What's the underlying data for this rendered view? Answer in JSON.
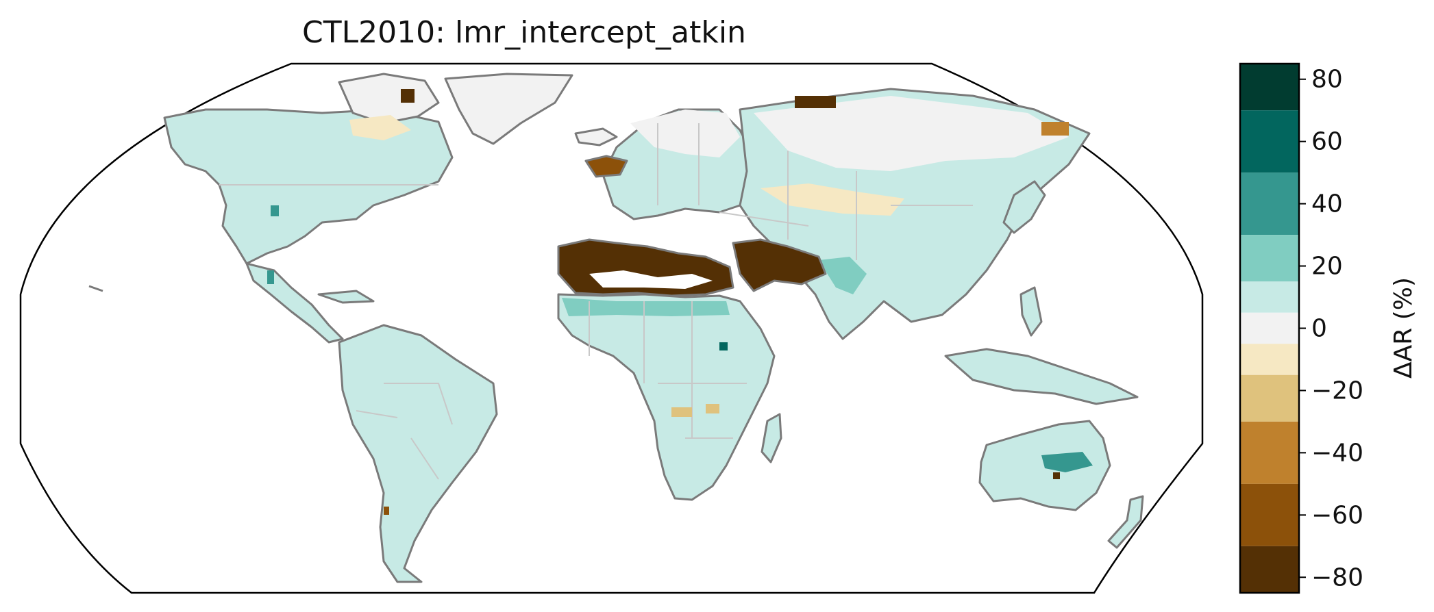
{
  "title": "CTL2010: lmr_intercept_atkin",
  "colorbar": {
    "label": "ΔAR (%)",
    "ticks": [
      80,
      60,
      40,
      20,
      0,
      -20,
      -40,
      -60,
      -80
    ],
    "tick_labels": [
      "80",
      "60",
      "40",
      "20",
      "0",
      "−20",
      "−40",
      "−60",
      "−80"
    ],
    "range": [
      -85,
      85
    ],
    "levels": [
      {
        "from": 70,
        "to": 85,
        "color": "#013c30"
      },
      {
        "from": 50,
        "to": 70,
        "color": "#02665e"
      },
      {
        "from": 30,
        "to": 50,
        "color": "#35978f"
      },
      {
        "from": 15,
        "to": 30,
        "color": "#80cdc1"
      },
      {
        "from": 5,
        "to": 15,
        "color": "#c7eae5"
      },
      {
        "from": -5,
        "to": 5,
        "color": "#f2f2f2"
      },
      {
        "from": -15,
        "to": -5,
        "color": "#f6e8c3"
      },
      {
        "from": -30,
        "to": -15,
        "color": "#dfc27d"
      },
      {
        "from": -50,
        "to": -30,
        "color": "#bf812d"
      },
      {
        "from": -70,
        "to": -50,
        "color": "#8c510a"
      },
      {
        "from": -85,
        "to": -70,
        "color": "#543005"
      }
    ]
  },
  "map": {
    "projection": "Robinson",
    "coastline_color": "#7a7a7a",
    "border_color": "#c8c8c8",
    "regions": [
      {
        "name": "North America",
        "value": 10
      },
      {
        "name": "Arctic Canada",
        "value": -10
      },
      {
        "name": "Greenland",
        "value": 0
      },
      {
        "name": "Central America",
        "value": 10
      },
      {
        "name": "South America",
        "value": 10
      },
      {
        "name": "Europe",
        "value": 5
      },
      {
        "name": "Northern Asia",
        "value": 0
      },
      {
        "name": "Central Asia",
        "value": -10
      },
      {
        "name": "East Asia",
        "value": 15
      },
      {
        "name": "South Asia",
        "value": 15
      },
      {
        "name": "Southeast Asia",
        "value": 15
      },
      {
        "name": "North Africa",
        "value": -80
      },
      {
        "name": "Middle East",
        "value": -80
      },
      {
        "name": "Africa",
        "value": 10
      },
      {
        "name": "Madagascar",
        "value": 10
      },
      {
        "name": "Australia",
        "value": 10
      },
      {
        "name": "New Zealand",
        "value": 10
      },
      {
        "name": "Iceland",
        "value": 0
      },
      {
        "name": "Japan",
        "value": 10
      }
    ]
  }
}
